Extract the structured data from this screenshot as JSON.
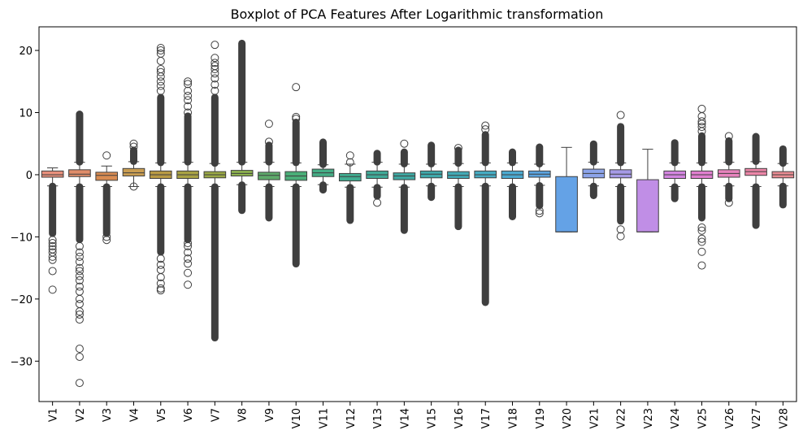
{
  "chart_data": {
    "type": "box",
    "title": "Boxplot of PCA Features After Logarithmic transformation",
    "xlabel": "",
    "ylabel": "",
    "ylim": [
      -36.5,
      23.8
    ],
    "yticks": [
      20,
      10,
      0,
      -10,
      -20,
      -30
    ],
    "ytick_labels": [
      "20",
      "10",
      "0",
      "−10",
      "−20",
      "−30"
    ],
    "grid": false,
    "legend": "none",
    "categories": [
      "V1",
      "V2",
      "V3",
      "V4",
      "V5",
      "V6",
      "V7",
      "V8",
      "V9",
      "V10",
      "V11",
      "V12",
      "V13",
      "V14",
      "V15",
      "V16",
      "V17",
      "V18",
      "V19",
      "V20",
      "V21",
      "V22",
      "V23",
      "V24",
      "V25",
      "V26",
      "V27",
      "V28"
    ],
    "colors": [
      "#e8907c",
      "#e08d6a",
      "#d98c52",
      "#c99d52",
      "#b89a44",
      "#a8a244",
      "#9aa845",
      "#8db24f",
      "#5eaa6a",
      "#4aae78",
      "#44ad85",
      "#40ac90",
      "#41aa98",
      "#3ea8a2",
      "#3fa9ab",
      "#42aab6",
      "#45abc2",
      "#4ba9cf",
      "#5ba3de",
      "#64a2e6",
      "#8ca4ea",
      "#a69ae6",
      "#c08ee6",
      "#d385e0",
      "#e07fcf",
      "#e883bd",
      "#ec86a8",
      "#ea8c93"
    ],
    "boxes": [
      {
        "q1": -0.4,
        "median": 0.0,
        "q3": 0.6,
        "wlo": -1.8,
        "whi": 1.1,
        "out_lo_dense": [
          -1.8,
          -9.5
        ],
        "out_hi_dense": null,
        "out_lo": [
          -10.5,
          -11.0,
          -11.5,
          -12.0,
          -12.5,
          -13.2,
          -13.7,
          -15.5,
          -18.5
        ],
        "out_hi": []
      },
      {
        "q1": -0.3,
        "median": 0.1,
        "q3": 0.8,
        "wlo": -1.9,
        "whi": 2.0,
        "out_lo_dense": [
          -1.9,
          -10.5
        ],
        "out_hi_dense": [
          2.0,
          9.8
        ],
        "out_lo": [
          -11.5,
          -12.5,
          -13.2,
          -14.0,
          -15.0,
          -15.5,
          -16.3,
          -17.0,
          -18.0,
          -18.8,
          -20.0,
          -20.8,
          -22.0,
          -22.5,
          -23.3,
          -28.0,
          -29.3,
          -33.5
        ],
        "out_hi": []
      },
      {
        "q1": -0.9,
        "median": -0.1,
        "q3": 0.4,
        "wlo": -1.9,
        "whi": 1.4,
        "out_lo_dense": [
          -1.9,
          -9.5
        ],
        "out_hi_dense": null,
        "out_lo": [
          -10.0,
          -10.5
        ],
        "out_hi": [
          3.1
        ]
      },
      {
        "q1": -0.2,
        "median": 0.3,
        "q3": 1.0,
        "wlo": -1.9,
        "whi": 2.1,
        "out_lo_dense": null,
        "out_hi_dense": [
          2.1,
          4.0
        ],
        "out_lo": [
          -1.9
        ],
        "out_hi": [
          4.5,
          5.0
        ]
      },
      {
        "q1": -0.6,
        "median": 0.0,
        "q3": 0.6,
        "wlo": -1.9,
        "whi": 1.9,
        "out_lo_dense": [
          -1.9,
          -12.5
        ],
        "out_hi_dense": [
          1.9,
          12.5
        ],
        "out_lo": [
          -13.5,
          -14.5,
          -15.3,
          -16.5,
          -17.5,
          -18.3,
          -18.6
        ],
        "out_hi": [
          13.5,
          14.3,
          15.0,
          15.8,
          16.5,
          17.0,
          18.3,
          19.5,
          20.0,
          20.4
        ]
      },
      {
        "q1": -0.6,
        "median": 0.0,
        "q3": 0.6,
        "wlo": -1.9,
        "whi": 2.0,
        "out_lo_dense": [
          -1.9,
          -10.5
        ],
        "out_hi_dense": [
          2.0,
          9.5
        ],
        "out_lo": [
          -11.0,
          -11.5,
          -12.5,
          -13.5,
          -14.3,
          -15.8,
          -17.7
        ],
        "out_hi": [
          10.0,
          11.0,
          12.0,
          12.7,
          13.5,
          14.6,
          15.0
        ]
      },
      {
        "q1": -0.5,
        "median": 0.0,
        "q3": 0.5,
        "wlo": -1.9,
        "whi": 1.8,
        "out_lo_dense": [
          -1.9,
          -26.3
        ],
        "out_hi_dense": [
          1.8,
          12.5
        ],
        "out_lo": [],
        "out_hi": [
          13.5,
          14.5,
          15.5,
          16.3,
          17.0,
          17.5,
          18.0,
          18.8,
          20.9
        ]
      },
      {
        "q1": -0.2,
        "median": 0.2,
        "q3": 0.7,
        "wlo": -1.6,
        "whi": 2.0,
        "out_lo_dense": [
          -1.6,
          -5.8
        ],
        "out_hi_dense": [
          2.0,
          21.2
        ],
        "out_lo": [],
        "out_hi": []
      },
      {
        "q1": -0.8,
        "median": -0.1,
        "q3": 0.4,
        "wlo": -1.9,
        "whi": 2.0,
        "out_lo_dense": [
          -1.9,
          -7.0
        ],
        "out_hi_dense": [
          2.0,
          4.8
        ],
        "out_lo": [],
        "out_hi": [
          5.3,
          8.2
        ]
      },
      {
        "q1": -0.9,
        "median": -0.2,
        "q3": 0.5,
        "wlo": -1.9,
        "whi": 1.9,
        "out_lo_dense": [
          -1.9,
          -14.4
        ],
        "out_hi_dense": [
          1.9,
          8.5
        ],
        "out_lo": [],
        "out_hi": [
          9.0,
          9.3,
          14.1
        ]
      },
      {
        "q1": -0.3,
        "median": 0.3,
        "q3": 0.9,
        "wlo": -1.6,
        "whi": 1.6,
        "out_lo_dense": [
          -1.6,
          -2.5
        ],
        "out_hi_dense": [
          1.6,
          5.3
        ],
        "out_lo": [],
        "out_hi": []
      },
      {
        "q1": -1.0,
        "median": -0.3,
        "q3": 0.2,
        "wlo": -2.0,
        "whi": 1.7,
        "out_lo_dense": [
          -2.0,
          -7.4
        ],
        "out_hi_dense": null,
        "out_lo": [],
        "out_hi": [
          2.0,
          3.1
        ]
      },
      {
        "q1": -0.6,
        "median": 0.0,
        "q3": 0.6,
        "wlo": -2.0,
        "whi": 2.0,
        "out_lo_dense": [
          -2.0,
          -3.5
        ],
        "out_hi_dense": [
          2.0,
          3.5
        ],
        "out_lo": [
          -4.5
        ],
        "out_hi": []
      },
      {
        "q1": -0.8,
        "median": -0.2,
        "q3": 0.3,
        "wlo": -2.0,
        "whi": 1.7,
        "out_lo_dense": [
          -2.0,
          -9.0
        ],
        "out_hi_dense": [
          1.7,
          3.7
        ],
        "out_lo": [],
        "out_hi": [
          5.0
        ]
      },
      {
        "q1": -0.5,
        "median": 0.1,
        "q3": 0.6,
        "wlo": -1.8,
        "whi": 1.7,
        "out_lo_dense": [
          -1.8,
          -3.7
        ],
        "out_hi_dense": [
          1.7,
          4.8
        ],
        "out_lo": [],
        "out_hi": []
      },
      {
        "q1": -0.6,
        "median": -0.1,
        "q3": 0.5,
        "wlo": -1.9,
        "whi": 1.8,
        "out_lo_dense": [
          -1.9,
          -8.4
        ],
        "out_hi_dense": [
          1.8,
          4.0
        ],
        "out_lo": [],
        "out_hi": [
          4.3
        ]
      },
      {
        "q1": -0.5,
        "median": 0.0,
        "q3": 0.6,
        "wlo": -1.8,
        "whi": 1.9,
        "out_lo_dense": [
          -1.8,
          -20.6
        ],
        "out_hi_dense": [
          1.9,
          6.5
        ],
        "out_lo": [],
        "out_hi": [
          7.3,
          7.9
        ]
      },
      {
        "q1": -0.6,
        "median": 0.0,
        "q3": 0.6,
        "wlo": -1.9,
        "whi": 1.9,
        "out_lo_dense": [
          -1.9,
          -6.8
        ],
        "out_hi_dense": [
          1.9,
          3.7
        ],
        "out_lo": [],
        "out_hi": []
      },
      {
        "q1": -0.4,
        "median": 0.1,
        "q3": 0.6,
        "wlo": -1.7,
        "whi": 1.7,
        "out_lo_dense": [
          -1.7,
          -5.0
        ],
        "out_hi_dense": [
          1.7,
          4.5
        ],
        "out_lo": [
          -5.8,
          -6.2
        ],
        "out_hi": []
      },
      {
        "q1": -9.2,
        "median": -9.2,
        "q3": -0.3,
        "wlo": -9.2,
        "whi": 4.4,
        "out_lo_dense": null,
        "out_hi_dense": null,
        "out_lo": [],
        "out_hi": []
      },
      {
        "q1": -0.5,
        "median": 0.2,
        "q3": 0.9,
        "wlo": -1.8,
        "whi": 2.0,
        "out_lo_dense": [
          -1.8,
          -3.4
        ],
        "out_hi_dense": [
          2.0,
          5.0
        ],
        "out_lo": [],
        "out_hi": []
      },
      {
        "q1": -0.5,
        "median": 0.1,
        "q3": 0.8,
        "wlo": -1.9,
        "whi": 1.9,
        "out_lo_dense": [
          -1.9,
          -7.5
        ],
        "out_hi_dense": [
          1.9,
          7.8
        ],
        "out_lo": [
          -8.8,
          -9.9
        ],
        "out_hi": [
          9.6
        ]
      },
      {
        "q1": -9.2,
        "median": -9.2,
        "q3": -0.8,
        "wlo": -9.2,
        "whi": 4.1,
        "out_lo_dense": null,
        "out_hi_dense": null,
        "out_lo": [],
        "out_hi": []
      },
      {
        "q1": -0.6,
        "median": 0.0,
        "q3": 0.6,
        "wlo": -1.9,
        "whi": 1.9,
        "out_lo_dense": [
          -1.9,
          -3.9
        ],
        "out_hi_dense": [
          1.9,
          5.2
        ],
        "out_lo": [],
        "out_hi": []
      },
      {
        "q1": -0.6,
        "median": 0.0,
        "q3": 0.6,
        "wlo": -1.9,
        "whi": 1.9,
        "out_lo_dense": [
          -1.9,
          -7.0
        ],
        "out_hi_dense": [
          1.9,
          6.3
        ],
        "out_lo": [
          -8.5,
          -9.0,
          -10.3,
          -10.8,
          -12.4,
          -14.6
        ],
        "out_hi": [
          7.0,
          7.7,
          8.2,
          8.6,
          9.4,
          10.6
        ]
      },
      {
        "q1": -0.4,
        "median": 0.2,
        "q3": 0.8,
        "wlo": -1.8,
        "whi": 2.0,
        "out_lo_dense": [
          -1.8,
          -3.9
        ],
        "out_hi_dense": [
          2.0,
          5.5
        ],
        "out_lo": [
          -4.5
        ],
        "out_hi": [
          6.2
        ]
      },
      {
        "q1": -0.1,
        "median": 0.5,
        "q3": 1.0,
        "wlo": -1.9,
        "whi": 2.1,
        "out_lo_dense": [
          -1.9,
          -8.2
        ],
        "out_hi_dense": [
          2.1,
          6.2
        ],
        "out_lo": [],
        "out_hi": []
      },
      {
        "q1": -0.5,
        "median": 0.0,
        "q3": 0.5,
        "wlo": -1.8,
        "whi": 1.8,
        "out_lo_dense": [
          -1.8,
          -4.9
        ],
        "out_hi_dense": [
          1.8,
          4.2
        ],
        "out_lo": [],
        "out_hi": []
      }
    ]
  }
}
